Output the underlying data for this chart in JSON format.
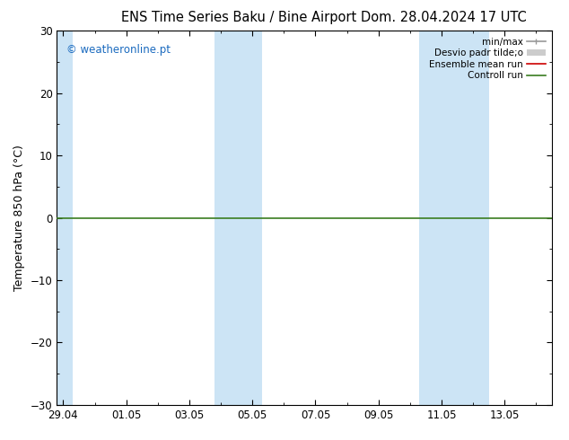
{
  "title_left": "ENS Time Series Baku / Bine Airport",
  "title_right": "Dom. 28.04.2024 17 UTC",
  "ylabel": "Temperature 850 hPa (°C)",
  "ylim": [
    -30,
    30
  ],
  "yticks": [
    -30,
    -20,
    -10,
    0,
    10,
    20,
    30
  ],
  "xtick_labels": [
    "29.04",
    "01.05",
    "03.05",
    "05.05",
    "07.05",
    "09.05",
    "11.05",
    "13.05"
  ],
  "xtick_positions": [
    0,
    2,
    4,
    6,
    8,
    10,
    12,
    14
  ],
  "xlim": [
    -0.2,
    15.5
  ],
  "watermark": "© weatheronline.pt",
  "watermark_color": "#1a6abf",
  "background_color": "#ffffff",
  "plot_bg_color": "#ffffff",
  "blue_bands": [
    {
      "start": -0.2,
      "end": 0.3
    },
    {
      "start": 4.8,
      "end": 6.3
    },
    {
      "start": 11.3,
      "end": 13.5
    }
  ],
  "blue_band_color": "#cce4f5",
  "controll_run_y": 0,
  "controll_run_color": "#3a7d20",
  "ensemble_mean_color": "#cc0000",
  "minmax_color": "#999999",
  "std_color": "#cccccc",
  "legend_labels": [
    "min/max",
    "Desvio padr tilde;o",
    "Ensemble mean run",
    "Controll run"
  ],
  "title_fontsize": 10.5,
  "label_fontsize": 9,
  "tick_fontsize": 8.5
}
